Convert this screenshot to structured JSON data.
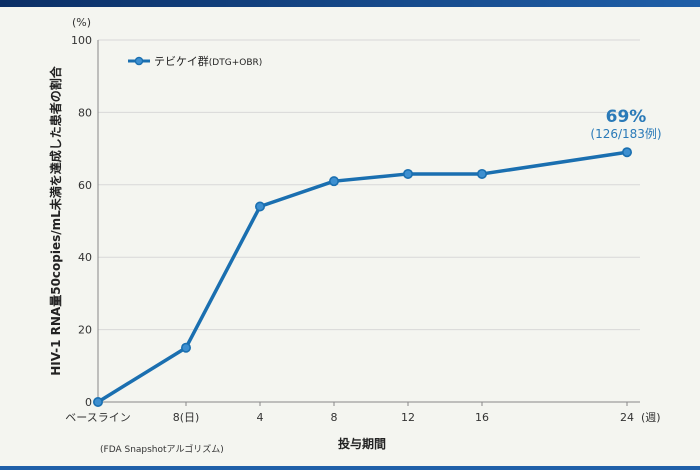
{
  "chart_data": {
    "type": "line",
    "categories": [
      "ベースライン",
      "8(日)",
      "4",
      "8",
      "12",
      "16",
      "24"
    ],
    "x_unit_label": "(週)",
    "series": [
      {
        "name": "テビケイ群",
        "name_suffix": "(DTG+OBR)",
        "values": [
          0,
          15,
          54,
          61,
          63,
          63,
          69
        ]
      }
    ],
    "y_unit": "(%)",
    "ylim": [
      0,
      100
    ],
    "yticks": [
      0,
      20,
      40,
      60,
      80,
      100
    ],
    "ylabel": "HIV-1 RNA量50copies/mL未満を達成した患者の割合",
    "xlabel": "投与期間",
    "grid": true,
    "legend_position": "top-left",
    "annotation": {
      "value": "69%",
      "detail": "(126/183例)"
    },
    "footnote": "(FDA Snapshotアルゴリズム)",
    "colors": {
      "line": "#1a6fb0",
      "marker": "#3d8fd0"
    }
  }
}
